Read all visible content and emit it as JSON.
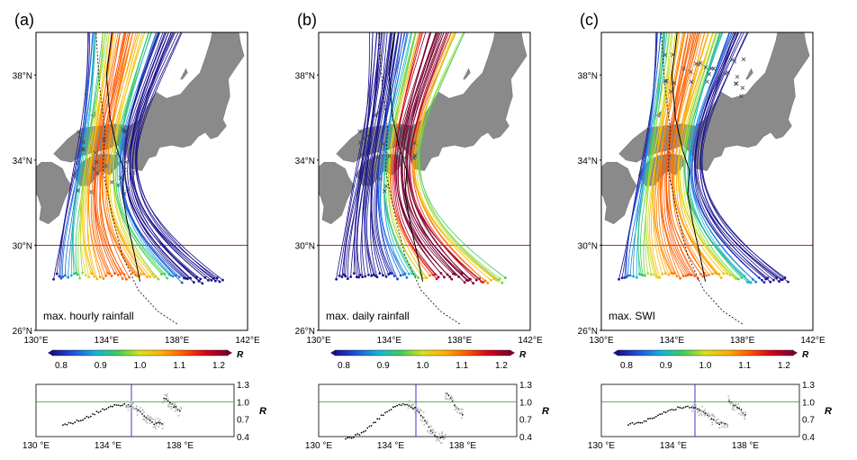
{
  "panels": [
    {
      "label": "(a)",
      "title": "max. hourly rainfall",
      "lat_labels": [
        "38°N",
        "34°N",
        "30°N",
        "26°N"
      ],
      "lon_labels": [
        "130°E",
        "134°E",
        "138°E",
        "142°E"
      ],
      "colorbar_ticks": [
        "0.8",
        "0.9",
        "1.0",
        "1.1",
        "1.2"
      ],
      "colorbar_symbol": "R",
      "sub_lon_labels": [
        "130 °E",
        "134 °E",
        "138 °E"
      ],
      "sub_y_ticks": [
        "1.3",
        "1.0",
        "0.7",
        "0.4"
      ],
      "sub_ylabel": "R"
    },
    {
      "label": "(b)",
      "title": "max. daily rainfall",
      "lat_labels": [
        "38°N",
        "34°N",
        "30°N",
        "26°N"
      ],
      "lon_labels": [
        "130°E",
        "134°E",
        "138°E",
        "142°E"
      ],
      "colorbar_ticks": [
        "0.8",
        "0.9",
        "1.0",
        "1.1",
        "1.2"
      ],
      "colorbar_symbol": "R",
      "sub_lon_labels": [
        "130 °E",
        "134 °E",
        "138 °E"
      ],
      "sub_y_ticks": [
        "1.3",
        "1.0",
        "0.7",
        "0.4"
      ],
      "sub_ylabel": "R"
    },
    {
      "label": "(c)",
      "title": "max. SWI",
      "lat_labels": [
        "38°N",
        "34°N",
        "30°N",
        "26°N"
      ],
      "lon_labels": [
        "130°E",
        "134°E",
        "138°E",
        "142°E"
      ],
      "colorbar_ticks": [
        "0.8",
        "0.9",
        "1.0",
        "1.1",
        "1.2"
      ],
      "colorbar_symbol": "R",
      "sub_lon_labels": [
        "130 °E",
        "134 °E",
        "138 °E"
      ],
      "sub_y_ticks": [
        "1.3",
        "1.0",
        "0.7",
        "0.4"
      ],
      "sub_ylabel": "R"
    }
  ],
  "colors": {
    "land": "#8a8a8a",
    "ocean": "#ffffff",
    "reference_latitude_line": "#cc0000",
    "reference_r_line": "#33aa33",
    "vertical_marker_line": "#2222cc",
    "colormap": [
      "#1a0f8c",
      "#1f55e0",
      "#14b4d8",
      "#3fcf5a",
      "#d8e21e",
      "#ffb000",
      "#ff5a00",
      "#d6001c",
      "#7a0030"
    ]
  },
  "chart_data": {
    "type": "map",
    "projection_extent": {
      "lon": [
        130,
        142
      ],
      "lat": [
        26,
        40
      ]
    },
    "reference_latitude": 30,
    "sub_chart": {
      "type": "scatter",
      "xlim": [
        130,
        141
      ],
      "ylim": [
        0.4,
        1.3
      ],
      "reference_R": 1.0
    }
  }
}
